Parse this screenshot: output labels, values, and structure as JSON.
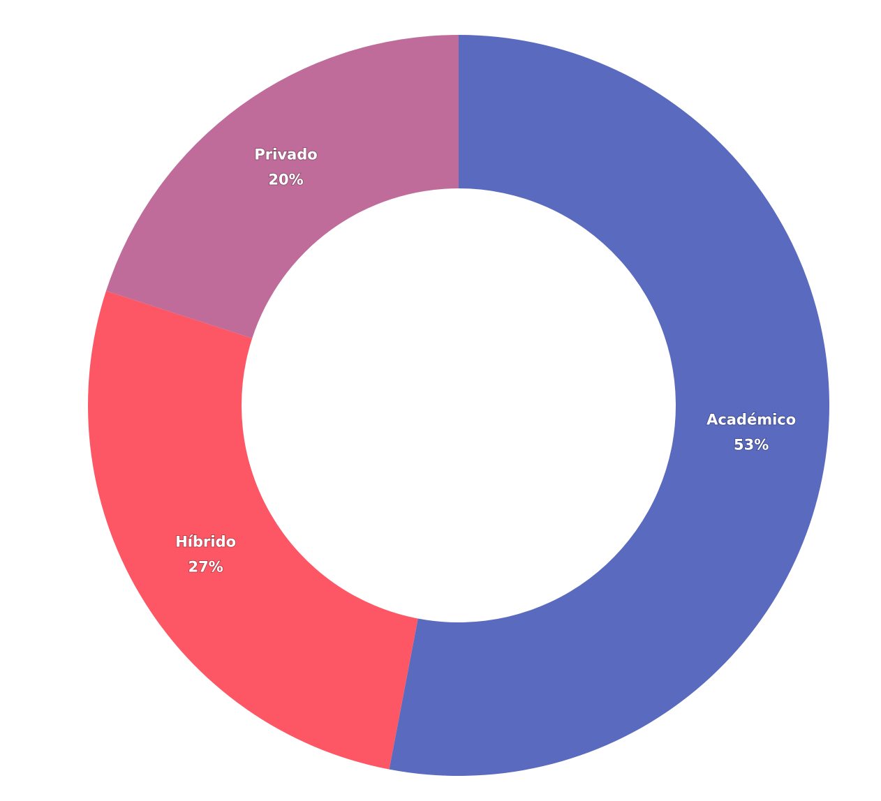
{
  "chart_data": {
    "type": "donut",
    "categories": [
      "Académico",
      "Híbrido",
      "Privado"
    ],
    "values": [
      53,
      27,
      20
    ],
    "value_labels": [
      "53%",
      "27%",
      "20%"
    ],
    "colors": [
      "#5a6bbf",
      "#fd5766",
      "#c06c9b"
    ]
  }
}
